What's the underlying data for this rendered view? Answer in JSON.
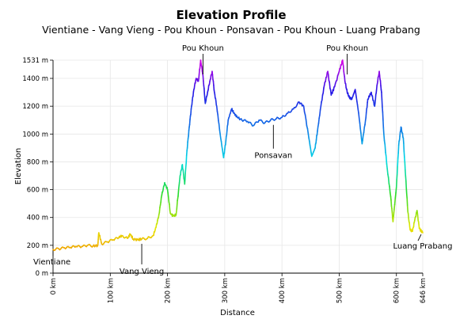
{
  "chart_data": {
    "type": "line",
    "title": "Elevation Profile",
    "subtitle": "Vientiane - Vang Vieng - Pou Khoun - Ponsavan - Pou Khoun - Luang Prabang",
    "xlabel": "Distance",
    "ylabel": "Elevation",
    "xlim": [
      0,
      646
    ],
    "ylim": [
      0,
      1531
    ],
    "x_ticks": [
      {
        "value": 0,
        "label": "0 km"
      },
      {
        "value": 100,
        "label": "100 km"
      },
      {
        "value": 200,
        "label": "200 km"
      },
      {
        "value": 300,
        "label": "300 km"
      },
      {
        "value": 400,
        "label": "400 km"
      },
      {
        "value": 500,
        "label": "500 km"
      },
      {
        "value": 600,
        "label": "600 km"
      },
      {
        "value": 646,
        "label": "646 km"
      }
    ],
    "y_ticks": [
      {
        "value": 0,
        "label": "0 m"
      },
      {
        "value": 200,
        "label": "200 m"
      },
      {
        "value": 400,
        "label": "400 m"
      },
      {
        "value": 600,
        "label": "600 m"
      },
      {
        "value": 800,
        "label": "800 m"
      },
      {
        "value": 1000,
        "label": "1000 m"
      },
      {
        "value": 1200,
        "label": "1200 m"
      },
      {
        "value": 1400,
        "label": "1400 m"
      },
      {
        "value": 1531,
        "label": "1531 m"
      }
    ],
    "grid": true,
    "color_by": "elevation",
    "color_range": [
      160,
      1531
    ],
    "x": [
      0,
      10,
      20,
      30,
      40,
      50,
      60,
      70,
      78,
      80,
      85,
      95,
      105,
      115,
      120,
      130,
      135,
      140,
      148,
      155,
      165,
      175,
      180,
      185,
      190,
      195,
      200,
      205,
      210,
      215,
      222,
      226,
      230,
      234,
      238,
      242,
      246,
      250,
      254,
      258,
      262,
      266,
      270,
      274,
      278,
      282,
      286,
      292,
      298,
      302,
      306,
      312,
      316,
      322,
      330,
      340,
      350,
      360,
      370,
      380,
      390,
      400,
      410,
      420,
      430,
      438,
      446,
      452,
      458,
      462,
      468,
      474,
      480,
      486,
      492,
      500,
      506,
      510,
      514,
      518,
      522,
      528,
      534,
      540,
      546,
      550,
      556,
      562,
      566,
      570,
      574,
      578,
      584,
      590,
      594,
      600,
      604,
      608,
      612,
      616,
      620,
      624,
      628,
      632,
      636,
      640,
      646
    ],
    "y": [
      170,
      175,
      182,
      185,
      192,
      190,
      200,
      195,
      198,
      290,
      210,
      225,
      240,
      255,
      270,
      250,
      280,
      245,
      240,
      245,
      250,
      270,
      330,
      420,
      560,
      650,
      600,
      430,
      410,
      420,
      700,
      780,
      640,
      880,
      1050,
      1200,
      1320,
      1400,
      1380,
      1531,
      1420,
      1220,
      1300,
      1380,
      1450,
      1300,
      1200,
      1000,
      830,
      950,
      1100,
      1180,
      1150,
      1120,
      1100,
      1090,
      1060,
      1100,
      1080,
      1100,
      1110,
      1120,
      1150,
      1180,
      1230,
      1200,
      1000,
      840,
      900,
      1020,
      1200,
      1350,
      1450,
      1280,
      1340,
      1450,
      1531,
      1380,
      1300,
      1260,
      1250,
      1320,
      1150,
      930,
      1100,
      1250,
      1300,
      1200,
      1350,
      1450,
      1300,
      1000,
      750,
      550,
      370,
      620,
      920,
      1050,
      970,
      700,
      440,
      310,
      300,
      380,
      450,
      320,
      290
    ],
    "annotations": [
      {
        "text": "Pou Khoun",
        "x": 262,
        "y": 1531,
        "position": "above"
      },
      {
        "text": "Pou Khoun",
        "x": 514,
        "y": 1531,
        "position": "above"
      },
      {
        "text": "Ponsavan",
        "x": 385,
        "y": 1100,
        "position": "below"
      },
      {
        "text": "Vientiane",
        "x": 0,
        "y": 170,
        "position": "below"
      },
      {
        "text": "Vang Vieng",
        "x": 155,
        "y": 245,
        "position": "below"
      },
      {
        "text": "Luang Prabang",
        "x": 646,
        "y": 290,
        "position": "below"
      }
    ]
  }
}
